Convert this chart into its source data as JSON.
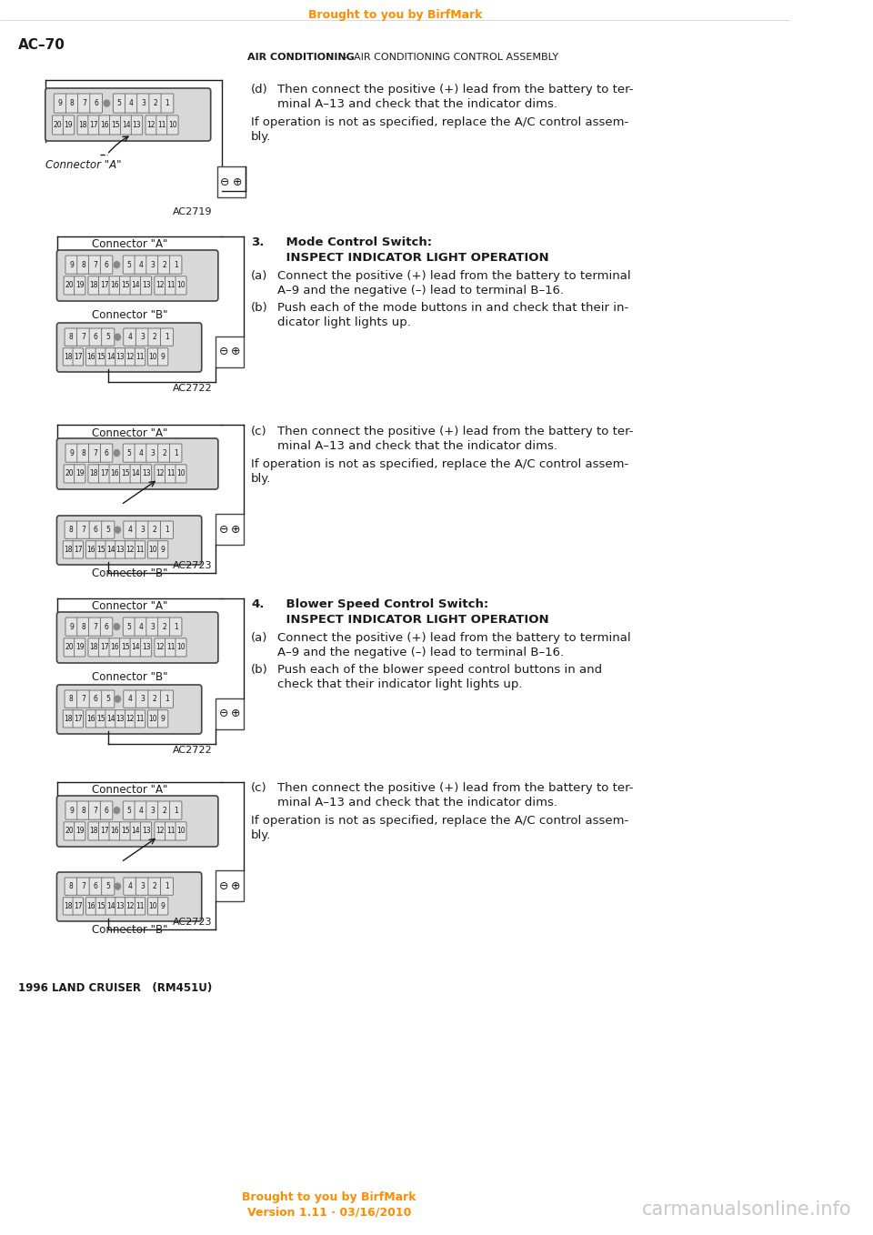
{
  "bg_color": "#ffffff",
  "orange_color": "#FF8C00",
  "header_top": "Brought to you by BirfMark",
  "page_label": "AC–70",
  "page_header_bold": "AIR CONDITIONING",
  "page_header_mid": "  –  ",
  "page_header_rest": "AIR CONDITIONING CONTROL ASSEMBLY",
  "footer_left": "1996 LAND CRUISER   (RM451U)",
  "footer_center1": "Brought to you by BirfMark",
  "footer_center2": "Version 1.11 · 03/16/2010",
  "footer_right": "carmanualsonline.info",
  "black": "#1a1a1a",
  "gray_connector": "#d8d8d8",
  "gray_cell": "#e4e4e4",
  "dark_border": "#444444"
}
